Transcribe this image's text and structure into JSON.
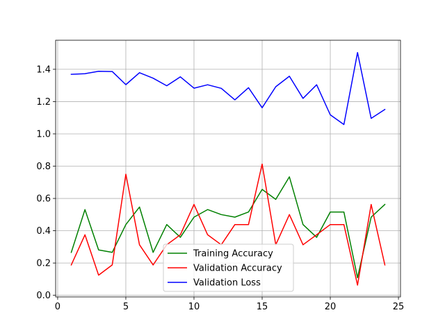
{
  "chart_data": {
    "type": "line",
    "title": "",
    "xlabel": "",
    "ylabel": "",
    "grid": true,
    "xlim": [
      -0.15,
      25.15
    ],
    "ylim": [
      -0.01,
      1.58
    ],
    "xticks": [
      0,
      5,
      10,
      15,
      20,
      25
    ],
    "yticks": [
      0.0,
      0.2,
      0.4,
      0.6,
      0.8,
      1.0,
      1.2,
      1.4
    ],
    "xtick_labels": [
      "0",
      "5",
      "10",
      "15",
      "20",
      "25"
    ],
    "ytick_labels": [
      "0.0",
      "0.2",
      "0.4",
      "0.6",
      "0.8",
      "1.0",
      "1.2",
      "1.4"
    ],
    "legend_position": "lower-center",
    "x": [
      1,
      2,
      3,
      4,
      5,
      6,
      7,
      8,
      9,
      10,
      11,
      12,
      13,
      14,
      15,
      16,
      17,
      18,
      19,
      20,
      21,
      22,
      23,
      24
    ],
    "series": [
      {
        "name": "Training Accuracy",
        "color": "#008000",
        "values": [
          0.266,
          0.531,
          0.281,
          0.266,
          0.438,
          0.547,
          0.266,
          0.438,
          0.359,
          0.484,
          0.531,
          0.5,
          0.484,
          0.516,
          0.656,
          0.594,
          0.734,
          0.438,
          0.359,
          0.516,
          0.516,
          0.109,
          0.484,
          0.563
        ]
      },
      {
        "name": "Validation Accuracy",
        "color": "#ff0000",
        "values": [
          0.188,
          0.375,
          0.125,
          0.188,
          0.75,
          0.313,
          0.188,
          0.313,
          0.375,
          0.563,
          0.375,
          0.313,
          0.438,
          0.438,
          0.813,
          0.313,
          0.5,
          0.313,
          0.375,
          0.438,
          0.438,
          0.063,
          0.563,
          0.188
        ]
      },
      {
        "name": "Validation Loss",
        "color": "#0000ff",
        "values": [
          1.369,
          1.373,
          1.388,
          1.386,
          1.305,
          1.379,
          1.345,
          1.298,
          1.353,
          1.283,
          1.304,
          1.282,
          1.211,
          1.286,
          1.162,
          1.292,
          1.357,
          1.22,
          1.304,
          1.118,
          1.058,
          1.504,
          1.096,
          1.151
        ]
      }
    ]
  }
}
